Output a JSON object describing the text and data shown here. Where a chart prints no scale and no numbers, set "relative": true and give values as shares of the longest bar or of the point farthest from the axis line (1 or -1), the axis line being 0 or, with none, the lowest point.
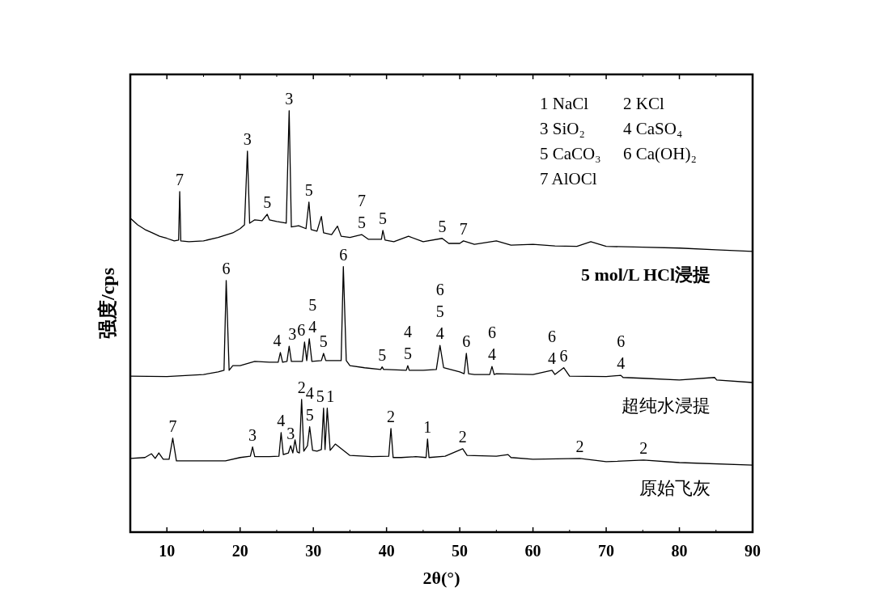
{
  "chart_data": {
    "type": "line",
    "relative": true,
    "xlabel": "2θ(°)",
    "ylabel": "强度/cps",
    "xlim": [
      5,
      90
    ],
    "xticks": [
      10,
      20,
      30,
      40,
      50,
      60,
      70,
      80,
      90
    ],
    "legend": false,
    "grid": false,
    "marker": "none",
    "line_style": "solid",
    "series": [
      {
        "name": "5 mol/L HCl浸提",
        "color": "#000000",
        "x": [
          5,
          6,
          7,
          8,
          9,
          10,
          11,
          11.6,
          11.75,
          11.9,
          13,
          15,
          17,
          19,
          20,
          20.6,
          21.0,
          21.3,
          22,
          23,
          23.7,
          24,
          25,
          26.3,
          26.7,
          27.0,
          28,
          29.0,
          29.4,
          29.7,
          30.5,
          31.1,
          31.4,
          32.5,
          33.3,
          33.8,
          35,
          36.6,
          37.5,
          39.3,
          39.5,
          39.8,
          41,
          43,
          45,
          47.6,
          48.5,
          50,
          50.5,
          52,
          55,
          57,
          60,
          63,
          66,
          67.9,
          70,
          75,
          80,
          85,
          90
        ],
        "values": [
          0.745,
          0.729,
          0.718,
          0.71,
          0.702,
          0.697,
          0.691,
          0.693,
          0.808,
          0.691,
          0.689,
          0.691,
          0.699,
          0.71,
          0.72,
          0.729,
          0.904,
          0.733,
          0.741,
          0.739,
          0.754,
          0.741,
          0.737,
          0.733,
          1.0,
          0.724,
          0.727,
          0.72,
          0.783,
          0.718,
          0.714,
          0.749,
          0.71,
          0.706,
          0.726,
          0.702,
          0.699,
          0.706,
          0.695,
          0.695,
          0.716,
          0.693,
          0.689,
          0.702,
          0.689,
          0.697,
          0.685,
          0.685,
          0.691,
          0.683,
          0.691,
          0.681,
          0.683,
          0.679,
          0.678,
          0.689,
          0.678,
          0.676,
          0.674,
          0.67,
          0.666
        ]
      },
      {
        "name": "超纯水浸提",
        "color": "#000000",
        "x": [
          5,
          10,
          15,
          17,
          17.8,
          18.1,
          18.5,
          19,
          20,
          22,
          24,
          25.2,
          25.5,
          25.8,
          26.4,
          26.7,
          27,
          28.5,
          28.8,
          29.1,
          29.45,
          29.8,
          31.1,
          31.4,
          31.7,
          33,
          33.8,
          34.1,
          34.5,
          35,
          37,
          39.2,
          39.4,
          39.6,
          40,
          42.7,
          42.9,
          43.1,
          45,
          46.8,
          47.3,
          47.8,
          50,
          50.6,
          50.9,
          51.2,
          52,
          54.1,
          54.4,
          54.7,
          55,
          60,
          62.6,
          63,
          64.2,
          65,
          70,
          72,
          72.3,
          75,
          80,
          84.8,
          85.1,
          90
        ],
        "values": [
          0.37,
          0.369,
          0.374,
          0.38,
          0.384,
          0.597,
          0.384,
          0.395,
          0.395,
          0.405,
          0.403,
          0.403,
          0.426,
          0.403,
          0.405,
          0.441,
          0.405,
          0.405,
          0.451,
          0.407,
          0.459,
          0.405,
          0.407,
          0.424,
          0.407,
          0.407,
          0.407,
          0.63,
          0.407,
          0.395,
          0.39,
          0.386,
          0.392,
          0.386,
          0.386,
          0.384,
          0.395,
          0.384,
          0.384,
          0.386,
          0.443,
          0.39,
          0.38,
          0.376,
          0.424,
          0.376,
          0.374,
          0.374,
          0.393,
          0.374,
          0.376,
          0.374,
          0.384,
          0.374,
          0.39,
          0.37,
          0.369,
          0.372,
          0.367,
          0.365,
          0.361,
          0.367,
          0.361,
          0.355
        ]
      },
      {
        "name": "原始飞灰",
        "color": "#000000",
        "x": [
          5,
          7,
          7.9,
          8.4,
          8.9,
          9.5,
          10.3,
          10.8,
          11.3,
          12,
          15,
          18,
          20,
          21.4,
          21.7,
          22,
          24,
          25.3,
          25.6,
          25.9,
          26.6,
          26.9,
          27.2,
          27.5,
          27.8,
          28.1,
          28.4,
          28.7,
          29.2,
          29.5,
          29.9,
          30.5,
          31.1,
          31.4,
          31.6,
          31.9,
          32.3,
          33,
          35,
          38,
          40.3,
          40.6,
          40.9,
          42,
          44,
          45.4,
          45.6,
          45.8,
          48,
          50.4,
          51,
          55,
          56.6,
          57,
          60,
          66.4,
          70,
          75.1,
          80,
          90
        ],
        "values": [
          0.175,
          0.177,
          0.186,
          0.175,
          0.188,
          0.173,
          0.173,
          0.223,
          0.169,
          0.169,
          0.169,
          0.169,
          0.177,
          0.18,
          0.202,
          0.179,
          0.179,
          0.18,
          0.236,
          0.184,
          0.188,
          0.205,
          0.188,
          0.219,
          0.19,
          0.188,
          0.315,
          0.192,
          0.205,
          0.25,
          0.194,
          0.192,
          0.196,
          0.294,
          0.196,
          0.294,
          0.194,
          0.209,
          0.182,
          0.179,
          0.18,
          0.246,
          0.177,
          0.177,
          0.179,
          0.177,
          0.221,
          0.177,
          0.18,
          0.198,
          0.182,
          0.18,
          0.184,
          0.177,
          0.173,
          0.175,
          0.167,
          0.171,
          0.165,
          0.159
        ]
      }
    ],
    "annotations": [
      "1 NaCl",
      "2 KCl",
      "3 SiO₂",
      "4 CaSO₄",
      "5 CaCO₃",
      "6 Ca(OH)₂",
      "7 AlOCl",
      {
        "text": "7",
        "x": 11.75,
        "y": 0.808
      },
      {
        "text": "3",
        "x": 21.0,
        "y": 0.904
      },
      {
        "text": "5",
        "x": 23.7,
        "y": 0.754
      },
      {
        "text": "3",
        "x": 26.7,
        "y": 1.0
      },
      {
        "text": "5",
        "x": 29.4,
        "y": 0.783
      },
      {
        "text": "5",
        "x": 36.6,
        "y": 0.706
      },
      "7",
      {
        "text": "5",
        "x": 39.5,
        "y": 0.716
      },
      {
        "text": "5",
        "x": 47.6,
        "y": 0.697
      },
      {
        "text": "7",
        "x": 50.5,
        "y": 0.691
      },
      {
        "text": "6",
        "x": 18.1,
        "y": 0.597
      },
      {
        "text": "6",
        "x": 34.1,
        "y": 0.63
      },
      {
        "text": "4",
        "x": 29.45,
        "y": 0.459
      },
      "5",
      {
        "text": "3",
        "x": 26.7,
        "y": 0.441
      },
      {
        "text": "6",
        "x": 28.8,
        "y": 0.451
      },
      {
        "text": "4",
        "x": 25.5,
        "y": 0.426
      },
      {
        "text": "5",
        "x": 31.4,
        "y": 0.424
      },
      {
        "text": "5",
        "x": 39.4,
        "y": 0.392
      },
      {
        "text": "5",
        "x": 42.9,
        "y": 0.395
      },
      "4",
      {
        "text": "4",
        "x": 47.3,
        "y": 0.443
      },
      "5",
      "6",
      {
        "text": "6",
        "x": 50.9,
        "y": 0.424
      },
      {
        "text": "4",
        "x": 54.4,
        "y": 0.393
      },
      "6",
      {
        "text": "4",
        "x": 62.6,
        "y": 0.384
      },
      "6",
      {
        "text": "6",
        "x": 64.2,
        "y": 0.39
      },
      {
        "text": "4",
        "x": 72,
        "y": 0.372
      },
      "6",
      {
        "text": "7",
        "x": 10.8,
        "y": 0.223
      },
      {
        "text": "3",
        "x": 21.7,
        "y": 0.202
      },
      {
        "text": "4",
        "x": 25.6,
        "y": 0.236
      },
      {
        "text": "3",
        "x": 26.9,
        "y": 0.205
      },
      {
        "text": "2",
        "x": 28.4,
        "y": 0.315
      },
      {
        "text": "5",
        "x": 29.5,
        "y": 0.25
      },
      "4",
      {
        "text": "5",
        "x": 31.4,
        "y": 0.294
      },
      {
        "text": "1",
        "x": 31.9,
        "y": 0.294
      },
      {
        "text": "2",
        "x": 40.6,
        "y": 0.246
      },
      {
        "text": "1",
        "x": 45.6,
        "y": 0.221
      },
      {
        "text": "2",
        "x": 50.4,
        "y": 0.198
      },
      {
        "text": "2",
        "x": 66.4,
        "y": 0.175
      },
      {
        "text": "2",
        "x": 75.1,
        "y": 0.171
      }
    ]
  }
}
